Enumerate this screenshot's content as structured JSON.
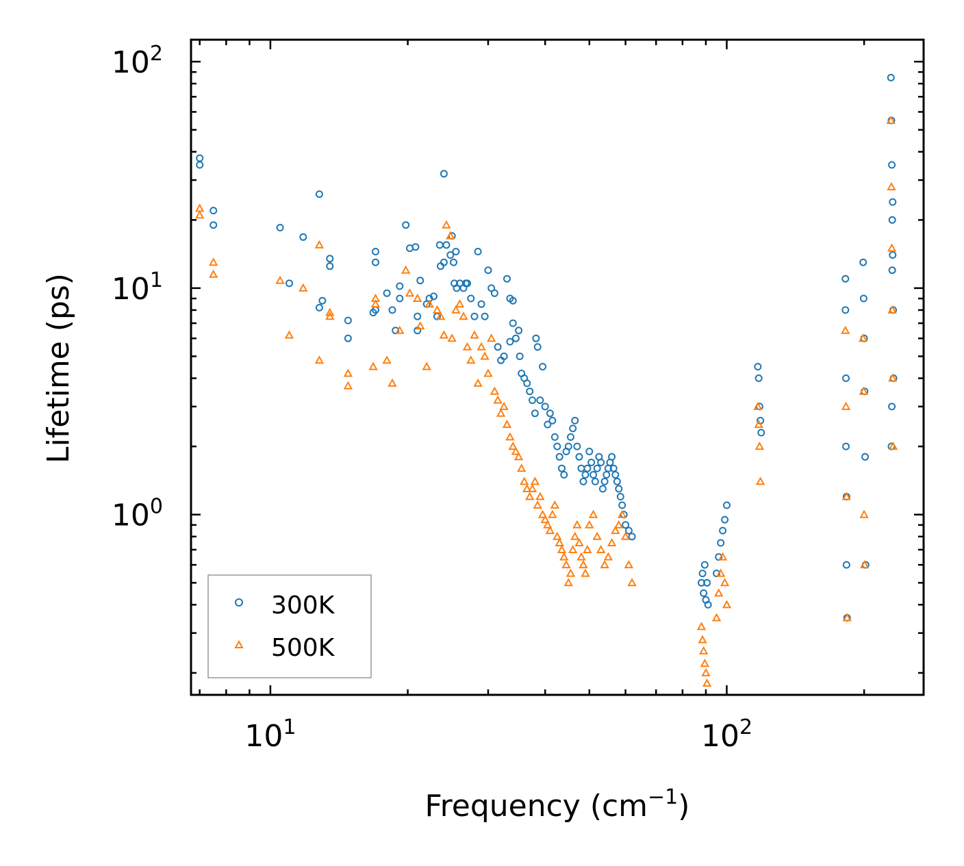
{
  "chart_data": {
    "type": "scatter",
    "xscale": "log",
    "yscale": "log",
    "xlim": [
      6.7,
      270
    ],
    "ylim": [
      0.16,
      125
    ],
    "xlabel": {
      "base": "Frequency (cm",
      "sup": "−1",
      "tail": ")"
    },
    "ylabel": "Lifetime (ps)",
    "x_ticks": [
      {
        "value": 10,
        "base": "10",
        "exp": "1"
      },
      {
        "value": 100,
        "base": "10",
        "exp": "2"
      }
    ],
    "y_ticks": [
      {
        "value": 1,
        "base": "10",
        "exp": "0"
      },
      {
        "value": 10,
        "base": "10",
        "exp": "1"
      },
      {
        "value": 100,
        "base": "10",
        "exp": "2"
      }
    ],
    "legend": {
      "position": "lower-left"
    },
    "series": [
      {
        "name": "300K",
        "marker": "circle",
        "color": "#1f77b4",
        "x": [
          7.0,
          7.0,
          7.5,
          7.5,
          10.5,
          11.0,
          11.8,
          12.8,
          12.8,
          13.0,
          13.5,
          13.5,
          14.8,
          14.8,
          16.8,
          17.0,
          17.0,
          17.0,
          18.0,
          18.5,
          18.8,
          19.2,
          19.2,
          19.8,
          20.2,
          20.8,
          21.0,
          21.0,
          21.3,
          22.0,
          22.3,
          22.8,
          23.2,
          23.5,
          23.6,
          24.0,
          24.0,
          24.3,
          24.8,
          25.0,
          25.2,
          25.3,
          25.5,
          25.6,
          26.0,
          26.5,
          26.8,
          27.0,
          27.5,
          28.0,
          28.5,
          29.0,
          29.5,
          30.0,
          30.5,
          31.0,
          31.5,
          32.0,
          32.5,
          33.0,
          33.5,
          33.5,
          34.0,
          34.0,
          34.5,
          35.0,
          35.2,
          35.5,
          36.0,
          36.5,
          37.0,
          37.5,
          38.0,
          38.2,
          38.5,
          39.0,
          39.5,
          40.0,
          40.5,
          41.0,
          41.5,
          42.0,
          42.5,
          43.0,
          43.5,
          44.0,
          44.5,
          45.0,
          45.5,
          46.0,
          46.5,
          47.0,
          47.5,
          48.0,
          48.5,
          49.0,
          49.5,
          50.0,
          50.5,
          51.0,
          51.5,
          52.0,
          52.5,
          53.0,
          53.5,
          54.0,
          54.5,
          55.0,
          55.5,
          56.0,
          56.5,
          57.0,
          57.5,
          58.0,
          58.5,
          59.0,
          59.5,
          60.0,
          61.0,
          62.0,
          88.0,
          88.5,
          89.0,
          89.5,
          90.0,
          90.5,
          91.0,
          95.0,
          96.0,
          97.0,
          98.0,
          99.0,
          100.0,
          117.0,
          117.5,
          118.0,
          118.5,
          119.0,
          182.0,
          182.0,
          182.5,
          182.5,
          183.0,
          183.0,
          183.5,
          199.0,
          199.5,
          200.0,
          200.5,
          201.0,
          201.5,
          229.0,
          229.5,
          230.0,
          230.5,
          231.0,
          231.5,
          232.0,
          229.5,
          230.0,
          230.5,
          231.0
        ],
        "y": [
          37.5,
          35.0,
          22.0,
          19.0,
          18.5,
          10.5,
          16.8,
          8.2,
          26.0,
          8.8,
          13.5,
          12.5,
          7.2,
          6.0,
          7.8,
          14.5,
          13.0,
          8.0,
          9.5,
          8.0,
          6.5,
          10.2,
          9.0,
          19.0,
          15.0,
          15.2,
          6.5,
          7.5,
          10.8,
          8.5,
          9.0,
          9.2,
          7.5,
          15.5,
          12.5,
          13.0,
          32.0,
          15.5,
          14.0,
          17.0,
          13.0,
          10.5,
          14.5,
          10.0,
          10.5,
          10.0,
          10.5,
          10.5,
          9.0,
          7.5,
          14.5,
          8.5,
          7.5,
          12.0,
          10.0,
          9.5,
          5.5,
          4.8,
          5.0,
          11.0,
          9.0,
          5.8,
          8.8,
          7.0,
          6.0,
          6.5,
          5.0,
          4.2,
          4.0,
          3.8,
          3.5,
          3.2,
          2.8,
          6.0,
          5.5,
          3.2,
          4.5,
          3.0,
          2.5,
          2.8,
          2.6,
          2.2,
          2.0,
          1.8,
          1.6,
          1.5,
          1.9,
          2.0,
          2.2,
          2.4,
          2.6,
          2.0,
          1.8,
          1.6,
          1.4,
          1.5,
          1.6,
          1.9,
          1.7,
          1.5,
          1.4,
          1.6,
          1.8,
          1.7,
          1.3,
          1.4,
          1.5,
          1.6,
          1.7,
          1.8,
          1.6,
          1.5,
          1.4,
          1.3,
          1.2,
          1.1,
          1.0,
          0.9,
          0.85,
          0.8,
          0.5,
          0.55,
          0.45,
          0.6,
          0.42,
          0.5,
          0.4,
          0.55,
          0.65,
          0.75,
          0.85,
          0.95,
          1.1,
          4.5,
          4.0,
          3.0,
          2.6,
          2.3,
          11.0,
          8.0,
          4.0,
          2.0,
          1.2,
          0.6,
          0.35,
          13.0,
          9.0,
          6.0,
          3.5,
          1.8,
          0.6,
          85.0,
          55.0,
          35.0,
          20.0,
          14.0,
          8.0,
          4.0,
          2.0,
          3.0,
          12.0,
          24.0
        ]
      },
      {
        "name": "500K",
        "marker": "triangle",
        "color": "#ff7f0e",
        "x": [
          7.0,
          7.0,
          7.5,
          7.5,
          10.5,
          11.0,
          11.8,
          12.8,
          12.8,
          13.5,
          13.5,
          14.8,
          14.8,
          16.8,
          17.0,
          17.0,
          18.0,
          18.5,
          19.2,
          19.8,
          20.2,
          21.0,
          21.3,
          22.0,
          22.3,
          23.2,
          23.6,
          24.0,
          24.3,
          24.8,
          25.0,
          25.5,
          26.0,
          26.5,
          27.0,
          27.5,
          28.0,
          28.5,
          29.0,
          29.5,
          30.0,
          30.5,
          31.0,
          31.5,
          32.0,
          32.5,
          33.0,
          33.5,
          34.0,
          34.5,
          35.0,
          35.5,
          36.0,
          36.5,
          37.0,
          37.5,
          38.0,
          38.5,
          39.0,
          39.5,
          40.0,
          40.5,
          41.0,
          41.5,
          42.0,
          42.5,
          43.0,
          43.5,
          44.0,
          44.5,
          45.0,
          45.5,
          46.0,
          46.5,
          47.0,
          47.5,
          48.0,
          48.5,
          49.0,
          49.5,
          50.0,
          51.0,
          52.0,
          53.0,
          54.0,
          55.0,
          56.0,
          57.0,
          58.0,
          59.0,
          60.0,
          61.0,
          62.0,
          88.0,
          88.5,
          89.0,
          89.5,
          90.0,
          90.5,
          95.0,
          96.0,
          97.0,
          98.0,
          99.0,
          100.0,
          117.0,
          117.5,
          118.0,
          118.5,
          182.0,
          182.5,
          183.0,
          183.5,
          199.0,
          199.5,
          200.0,
          200.5,
          229.0,
          229.5,
          230.0,
          230.5,
          231.0,
          231.5
        ],
        "y": [
          22.5,
          21.0,
          13.0,
          11.5,
          10.8,
          6.2,
          10.0,
          4.8,
          15.5,
          7.5,
          7.8,
          4.2,
          3.7,
          4.5,
          9.0,
          8.5,
          4.8,
          3.8,
          6.5,
          12.0,
          9.5,
          9.0,
          6.8,
          4.5,
          8.5,
          8.0,
          7.5,
          6.2,
          19.0,
          17.0,
          6.0,
          8.0,
          8.5,
          7.5,
          5.5,
          4.8,
          6.2,
          3.8,
          5.5,
          5.0,
          4.2,
          6.0,
          3.5,
          3.2,
          2.8,
          3.0,
          2.5,
          2.2,
          2.0,
          1.9,
          1.8,
          1.6,
          1.4,
          1.3,
          1.2,
          1.3,
          1.4,
          1.1,
          1.2,
          1.0,
          0.95,
          0.9,
          0.85,
          1.0,
          1.1,
          0.8,
          0.75,
          0.7,
          0.65,
          0.6,
          0.5,
          0.55,
          0.7,
          0.8,
          0.9,
          0.75,
          0.65,
          0.6,
          0.55,
          0.7,
          0.9,
          1.0,
          0.8,
          0.7,
          0.6,
          0.65,
          0.75,
          0.85,
          0.9,
          1.0,
          0.8,
          0.6,
          0.5,
          0.32,
          0.28,
          0.25,
          0.22,
          0.2,
          0.18,
          0.35,
          0.45,
          0.55,
          0.65,
          0.5,
          0.4,
          3.0,
          2.5,
          2.0,
          1.4,
          6.5,
          3.0,
          1.2,
          0.35,
          6.0,
          3.5,
          1.0,
          0.6,
          55.0,
          28.0,
          15.0,
          8.0,
          4.0,
          2.0
        ]
      }
    ]
  }
}
